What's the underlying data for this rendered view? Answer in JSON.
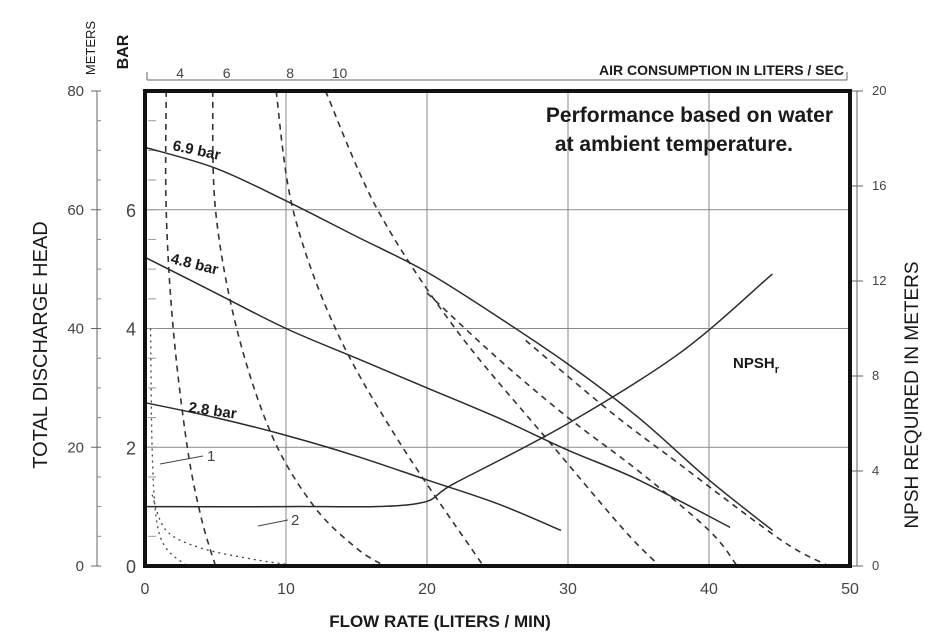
{
  "chart_data": {
    "type": "line",
    "xlabel": "FLOW RATE (LITERS / MIN)",
    "xlim": [
      0,
      50
    ],
    "x_ticks": [
      "0",
      "10",
      "20",
      "30",
      "40",
      "50"
    ],
    "ylabel": "TOTAL DISCHARGE HEAD",
    "y_units_left_outer": "METERS",
    "y_units_left_inner": "BAR",
    "ylim_bar": [
      0,
      8
    ],
    "ylim_meters": [
      0,
      80
    ],
    "y_ticks_bar": [
      "0",
      "2",
      "4",
      "6"
    ],
    "y_ticks_meters": [
      "0",
      "20",
      "40",
      "60",
      "80"
    ],
    "y2label": "NPSH REQUIRED IN METERS",
    "y2lim": [
      0,
      20
    ],
    "y2_ticks": [
      "0",
      "4",
      "8",
      "12",
      "16",
      "20"
    ],
    "top_axis_label": "AIR CONSUMPTION IN LITERS / SEC",
    "top_ticks": [
      "4",
      "6",
      "8",
      "10"
    ],
    "top_tick_x": [
      1.5,
      4.8,
      9.3,
      12.8
    ],
    "annotation": [
      "Performance based on water",
      "at ambient temperature."
    ],
    "grid": true,
    "pressure_curves": [
      {
        "name": "6.9 bar",
        "points": [
          [
            0,
            7.05
          ],
          [
            5,
            6.7
          ],
          [
            10,
            6.15
          ],
          [
            15,
            5.55
          ],
          [
            20,
            4.95
          ],
          [
            25,
            4.2
          ],
          [
            30,
            3.4
          ],
          [
            35,
            2.5
          ],
          [
            40,
            1.45
          ],
          [
            44.5,
            0.6
          ]
        ]
      },
      {
        "name": "4.8 bar",
        "points": [
          [
            0,
            5.2
          ],
          [
            5,
            4.6
          ],
          [
            10,
            4.0
          ],
          [
            15,
            3.5
          ],
          [
            20,
            3.0
          ],
          [
            25,
            2.5
          ],
          [
            30,
            1.95
          ],
          [
            35,
            1.45
          ],
          [
            41.5,
            0.65
          ]
        ]
      },
      {
        "name": "2.8 bar",
        "points": [
          [
            0,
            2.75
          ],
          [
            5,
            2.5
          ],
          [
            10,
            2.2
          ],
          [
            15,
            1.85
          ],
          [
            20,
            1.45
          ],
          [
            25,
            1.05
          ],
          [
            29.5,
            0.6
          ]
        ]
      }
    ],
    "air_consumption_curves": [
      {
        "name": "4",
        "points": [
          [
            1.5,
            8.0
          ],
          [
            1.5,
            6.0
          ],
          [
            2.0,
            4.0
          ],
          [
            3.0,
            2.0
          ],
          [
            4.0,
            0.8
          ],
          [
            5.0,
            0.0
          ]
        ]
      },
      {
        "name": "6",
        "points": [
          [
            4.8,
            8.0
          ],
          [
            5.0,
            6.0
          ],
          [
            6.5,
            4.0
          ],
          [
            9.0,
            2.2
          ],
          [
            12.0,
            1.0
          ],
          [
            15.0,
            0.3
          ],
          [
            17.0,
            0.0
          ]
        ]
      },
      {
        "name": "8",
        "points": [
          [
            9.3,
            8.0
          ],
          [
            10.5,
            6.0
          ],
          [
            13.5,
            4.0
          ],
          [
            18.0,
            2.1
          ],
          [
            24.0,
            0.0
          ]
        ]
      },
      {
        "name": "10",
        "points": [
          [
            12.8,
            8.0
          ],
          [
            16.5,
            6.0
          ],
          [
            22.0,
            4.0
          ],
          [
            29.0,
            2.0
          ],
          [
            34.0,
            0.6
          ],
          [
            36.5,
            0.0
          ]
        ]
      },
      {
        "name": "",
        "points": [
          [
            20,
            4.6
          ],
          [
            25,
            3.5
          ],
          [
            30,
            2.5
          ],
          [
            35,
            1.6
          ],
          [
            40,
            0.6
          ],
          [
            42,
            0.0
          ]
        ]
      },
      {
        "name": "",
        "points": [
          [
            27,
            3.8
          ],
          [
            33,
            2.6
          ],
          [
            38,
            1.7
          ],
          [
            43,
            0.8
          ],
          [
            46,
            0.3
          ],
          [
            48.5,
            0.0
          ]
        ]
      }
    ],
    "npsh_curve": {
      "name": "NPSH",
      "subscript": "r",
      "axis": "y2",
      "points": [
        [
          0,
          2.5
        ],
        [
          10,
          2.5
        ],
        [
          19,
          2.6
        ],
        [
          22,
          3.5
        ],
        [
          30,
          6.0
        ],
        [
          38,
          9.0
        ],
        [
          44.5,
          12.3
        ]
      ]
    },
    "suction_lift_curves": [
      {
        "name": "1",
        "points": [
          [
            0.4,
            4.0
          ],
          [
            0.5,
            2.0
          ],
          [
            0.8,
            0.8
          ],
          [
            1.5,
            0.3
          ],
          [
            3.0,
            0.0
          ]
        ]
      },
      {
        "name": "2",
        "points": [
          [
            0.5,
            1.2
          ],
          [
            1.5,
            0.6
          ],
          [
            4.0,
            0.3
          ],
          [
            8.0,
            0.1
          ],
          [
            11.0,
            0.0
          ]
        ]
      }
    ]
  }
}
